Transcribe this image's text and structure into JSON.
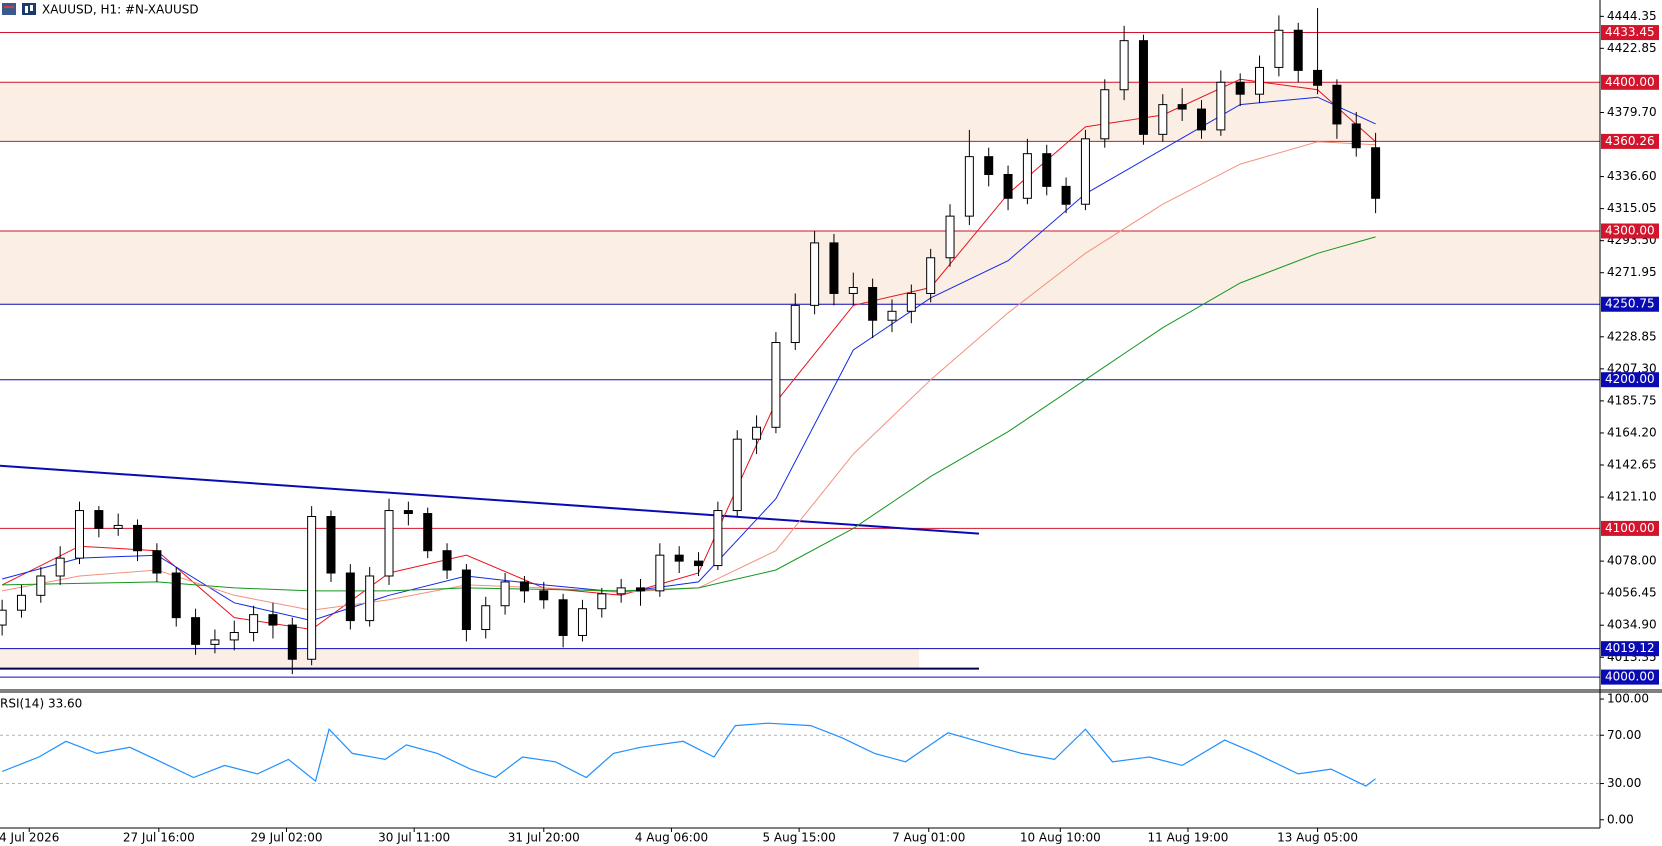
{
  "chart_data": [
    {
      "type": "candlestick",
      "title": "XAUUSD, H1:  #N-XAUUSD",
      "open": [
        4035,
        4045,
        4055,
        4068,
        4080,
        4112,
        4100,
        4102,
        4085,
        4070,
        4040,
        4022,
        4025,
        4030,
        4042,
        4035,
        4012,
        4108,
        4070,
        4038,
        4068,
        4112,
        4110,
        4085,
        4072,
        4032,
        4048,
        4064,
        4058,
        4052,
        4028,
        4046,
        4056,
        4060,
        4058,
        4082,
        4078,
        4075,
        4112,
        4160,
        4168,
        4225,
        4250,
        4292,
        4258,
        4262,
        4240,
        4246,
        4258,
        4282,
        4310,
        4350,
        4338,
        4322,
        4352,
        4330,
        4318,
        4362,
        4395,
        4428,
        4365,
        4385,
        4382,
        4368,
        4400,
        4392,
        4410,
        4435,
        4408,
        4398,
        4372,
        4356
      ],
      "high": [
        4052,
        4062,
        4074,
        4088,
        4118,
        4115,
        4110,
        4106,
        4090,
        4074,
        4046,
        4032,
        4038,
        4048,
        4050,
        4040,
        4115,
        4112,
        4076,
        4074,
        4120,
        4118,
        4114,
        4090,
        4076,
        4054,
        4070,
        4068,
        4064,
        4056,
        4052,
        4060,
        4066,
        4066,
        4090,
        4088,
        4084,
        4118,
        4166,
        4176,
        4232,
        4258,
        4300,
        4298,
        4272,
        4268,
        4254,
        4264,
        4288,
        4318,
        4368,
        4356,
        4344,
        4362,
        4358,
        4336,
        4368,
        4402,
        4438,
        4432,
        4392,
        4396,
        4388,
        4408,
        4406,
        4418,
        4445,
        4440,
        4450,
        4402,
        4380,
        4366
      ],
      "low": [
        4028,
        4040,
        4050,
        4062,
        4076,
        4094,
        4095,
        4078,
        4064,
        4034,
        4015,
        4016,
        4018,
        4024,
        4026,
        4002,
        4008,
        4064,
        4032,
        4034,
        4062,
        4102,
        4080,
        4066,
        4024,
        4026,
        4042,
        4050,
        4046,
        4020,
        4024,
        4040,
        4050,
        4048,
        4054,
        4070,
        4068,
        4072,
        4108,
        4150,
        4164,
        4220,
        4244,
        4250,
        4250,
        4228,
        4232,
        4238,
        4252,
        4276,
        4304,
        4330,
        4314,
        4318,
        4324,
        4312,
        4314,
        4356,
        4388,
        4358,
        4360,
        4374,
        4362,
        4364,
        4384,
        4386,
        4404,
        4400,
        4392,
        4362,
        4350,
        4312
      ],
      "close": [
        4045,
        4055,
        4068,
        4080,
        4112,
        4100,
        4102,
        4085,
        4070,
        4040,
        4022,
        4025,
        4030,
        4042,
        4035,
        4012,
        4108,
        4070,
        4038,
        4068,
        4112,
        4110,
        4085,
        4072,
        4032,
        4048,
        4064,
        4058,
        4052,
        4028,
        4046,
        4056,
        4060,
        4058,
        4082,
        4078,
        4075,
        4112,
        4160,
        4168,
        4225,
        4250,
        4292,
        4258,
        4262,
        4240,
        4246,
        4258,
        4282,
        4310,
        4350,
        4338,
        4322,
        4352,
        4330,
        4318,
        4362,
        4395,
        4428,
        4365,
        4385,
        4382,
        4368,
        4400,
        4392,
        4410,
        4435,
        4408,
        4398,
        4372,
        4356,
        4322
      ],
      "up_color": "#ffffff",
      "down_color": "#000000",
      "xlim": [
        -0.11,
        82.6
      ],
      "ylim": [
        3992,
        4454
      ],
      "yticks": [
        {
          "value": 4444.35,
          "label": "4444.35"
        },
        {
          "value": 4422.85,
          "label": "4422.85"
        },
        {
          "value": 4379.7,
          "label": "4379.70"
        },
        {
          "value": 4336.6,
          "label": "4336.60"
        },
        {
          "value": 4315.05,
          "label": "4315.05"
        },
        {
          "value": 4293.5,
          "label": "4293.50"
        },
        {
          "value": 4271.95,
          "label": "4271.95"
        },
        {
          "value": 4228.85,
          "label": "4228.85"
        },
        {
          "value": 4207.3,
          "label": "4207.30"
        },
        {
          "value": 4185.75,
          "label": "4185.75"
        },
        {
          "value": 4164.2,
          "label": "4164.20"
        },
        {
          "value": 4142.65,
          "label": "4142.65"
        },
        {
          "value": 4121.1,
          "label": "4121.10"
        },
        {
          "value": 4078,
          "label": "4078.00"
        },
        {
          "value": 4056.45,
          "label": "4056.45"
        },
        {
          "value": 4034.9,
          "label": "4034.90"
        },
        {
          "value": 4013.35,
          "label": "4013.35"
        }
      ],
      "xticks": [
        {
          "value": 1.4,
          "label": "4 Jul 2026"
        },
        {
          "value": 8.1,
          "label": "27 Jul 16:00"
        },
        {
          "value": 14.7,
          "label": "29 Jul 02:00"
        },
        {
          "value": 21.3,
          "label": "30 Jul 11:00"
        },
        {
          "value": 28,
          "label": "31 Jul 20:00"
        },
        {
          "value": 34.6,
          "label": "4 Aug 06:00"
        },
        {
          "value": 41.2,
          "label": "5 Aug 15:00"
        },
        {
          "value": 47.9,
          "label": "7 Aug 01:00"
        },
        {
          "value": 54.7,
          "label": "10 Aug 10:00"
        },
        {
          "value": 61.3,
          "label": "11 Aug 19:00"
        },
        {
          "value": 68,
          "label": "13 Aug 05:00"
        }
      ],
      "zones": [
        {
          "from": 4360.26,
          "to": 4400,
          "color": "#fbeee4"
        },
        {
          "from": 4250.75,
          "to": 4300,
          "color": "#fbeee4"
        },
        {
          "from": 4005.7,
          "to": 4019.12,
          "color": "#fbeee4",
          "x_end": 47.4
        }
      ],
      "levels": [
        {
          "value": 4433.45,
          "label": "4433.45",
          "color": "#d2142c"
        },
        {
          "value": 4400,
          "label": "4400.00",
          "color": "#d2142c"
        },
        {
          "value": 4360.26,
          "label": "4360.26",
          "color": "#d2142c"
        },
        {
          "value": 4300,
          "label": "4300.00",
          "color": "#d2142c"
        },
        {
          "value": 4250.75,
          "label": "4250.75",
          "color": "#0a0ab4"
        },
        {
          "value": 4200,
          "label": "4200.00",
          "color": "#0a0ab4"
        },
        {
          "value": 4100,
          "label": "4100.00",
          "color": "#d2142c"
        },
        {
          "value": 4019.12,
          "label": "4019.12",
          "color": "#0a0ab4"
        },
        {
          "value": 4000,
          "label": "4000.00",
          "color": "#0a0ab4"
        }
      ],
      "trendlines": [
        {
          "x": [
            -0.11,
            50.5
          ],
          "values": [
            4142.2,
            4096.5
          ],
          "color": "#0a0ab4"
        },
        {
          "x": [
            -0.11,
            50.5
          ],
          "values": [
            4005.7,
            4005.7
          ],
          "color": "#000050"
        }
      ],
      "series": [
        {
          "color": "#e8141e",
          "x": [
            0,
            4,
            8,
            12,
            16,
            20,
            24,
            28,
            32,
            36,
            40,
            44,
            48,
            52,
            56,
            60,
            64,
            68,
            71
          ],
          "values": [
            4062,
            4088,
            4085,
            4040,
            4032,
            4070,
            4082,
            4060,
            4055,
            4070,
            4185,
            4250,
            4262,
            4325,
            4370,
            4378,
            4402,
            4395,
            4360
          ]
        },
        {
          "color": "#1428e6",
          "x": [
            0,
            4,
            8,
            12,
            16,
            20,
            24,
            28,
            32,
            36,
            40,
            44,
            48,
            52,
            56,
            60,
            64,
            68,
            71
          ],
          "values": [
            4066,
            4080,
            4082,
            4050,
            4038,
            4055,
            4068,
            4062,
            4057,
            4064,
            4120,
            4220,
            4255,
            4280,
            4325,
            4355,
            4385,
            4390,
            4372
          ]
        },
        {
          "color": "#f4907c",
          "x": [
            0,
            4,
            8,
            12,
            16,
            20,
            24,
            28,
            32,
            36,
            40,
            44,
            48,
            52,
            56,
            60,
            64,
            68,
            71
          ],
          "values": [
            4058,
            4068,
            4072,
            4055,
            4045,
            4052,
            4062,
            4060,
            4057,
            4060,
            4085,
            4150,
            4200,
            4245,
            4285,
            4318,
            4345,
            4360,
            4358
          ]
        },
        {
          "color": "#14961e",
          "x": [
            0,
            4,
            8,
            12,
            16,
            20,
            24,
            28,
            32,
            36,
            40,
            44,
            48,
            52,
            56,
            60,
            64,
            68,
            71
          ],
          "values": [
            4062,
            4063,
            4064,
            4060,
            4058,
            4058,
            4060,
            4059,
            4058,
            4060,
            4072,
            4100,
            4135,
            4165,
            4200,
            4235,
            4265,
            4285,
            4296
          ]
        }
      ]
    },
    {
      "type": "line",
      "title": "RSI(14) 33.60",
      "color": "#1e90ff",
      "x": [
        0,
        1.9,
        3.3,
        4.9,
        6.6,
        8.2,
        9.9,
        11.5,
        13.2,
        14.8,
        16.2,
        16.9,
        18.1,
        19.8,
        20.9,
        22.5,
        24.2,
        25.5,
        26.9,
        28.6,
        30.2,
        31.6,
        33,
        35.2,
        36.8,
        37.9,
        39.6,
        41.8,
        43.4,
        45.1,
        46.7,
        48.9,
        51.1,
        52.7,
        54.4,
        56,
        57.4,
        59.3,
        61,
        63.2,
        64.8,
        67,
        68.7,
        70.5,
        71
      ],
      "values": [
        40,
        52,
        65,
        55,
        60,
        48,
        35,
        45,
        38,
        50,
        32,
        75,
        55,
        50,
        62,
        55,
        42,
        35,
        52,
        48,
        35,
        55,
        60,
        65,
        52,
        78,
        80,
        78,
        68,
        55,
        48,
        72,
        62,
        55,
        50,
        75,
        48,
        52,
        45,
        66,
        55,
        38,
        42,
        28,
        34
      ],
      "xlim": [
        -0.11,
        82.6
      ],
      "ylim": [
        -6,
        105
      ],
      "yticks": [
        {
          "value": 100,
          "label": "100.00"
        },
        {
          "value": 70,
          "label": "70.00"
        },
        {
          "value": 30,
          "label": "30.00"
        },
        {
          "value": 0,
          "label": "0.00"
        }
      ],
      "dashed_levels": [
        70,
        30
      ]
    }
  ]
}
